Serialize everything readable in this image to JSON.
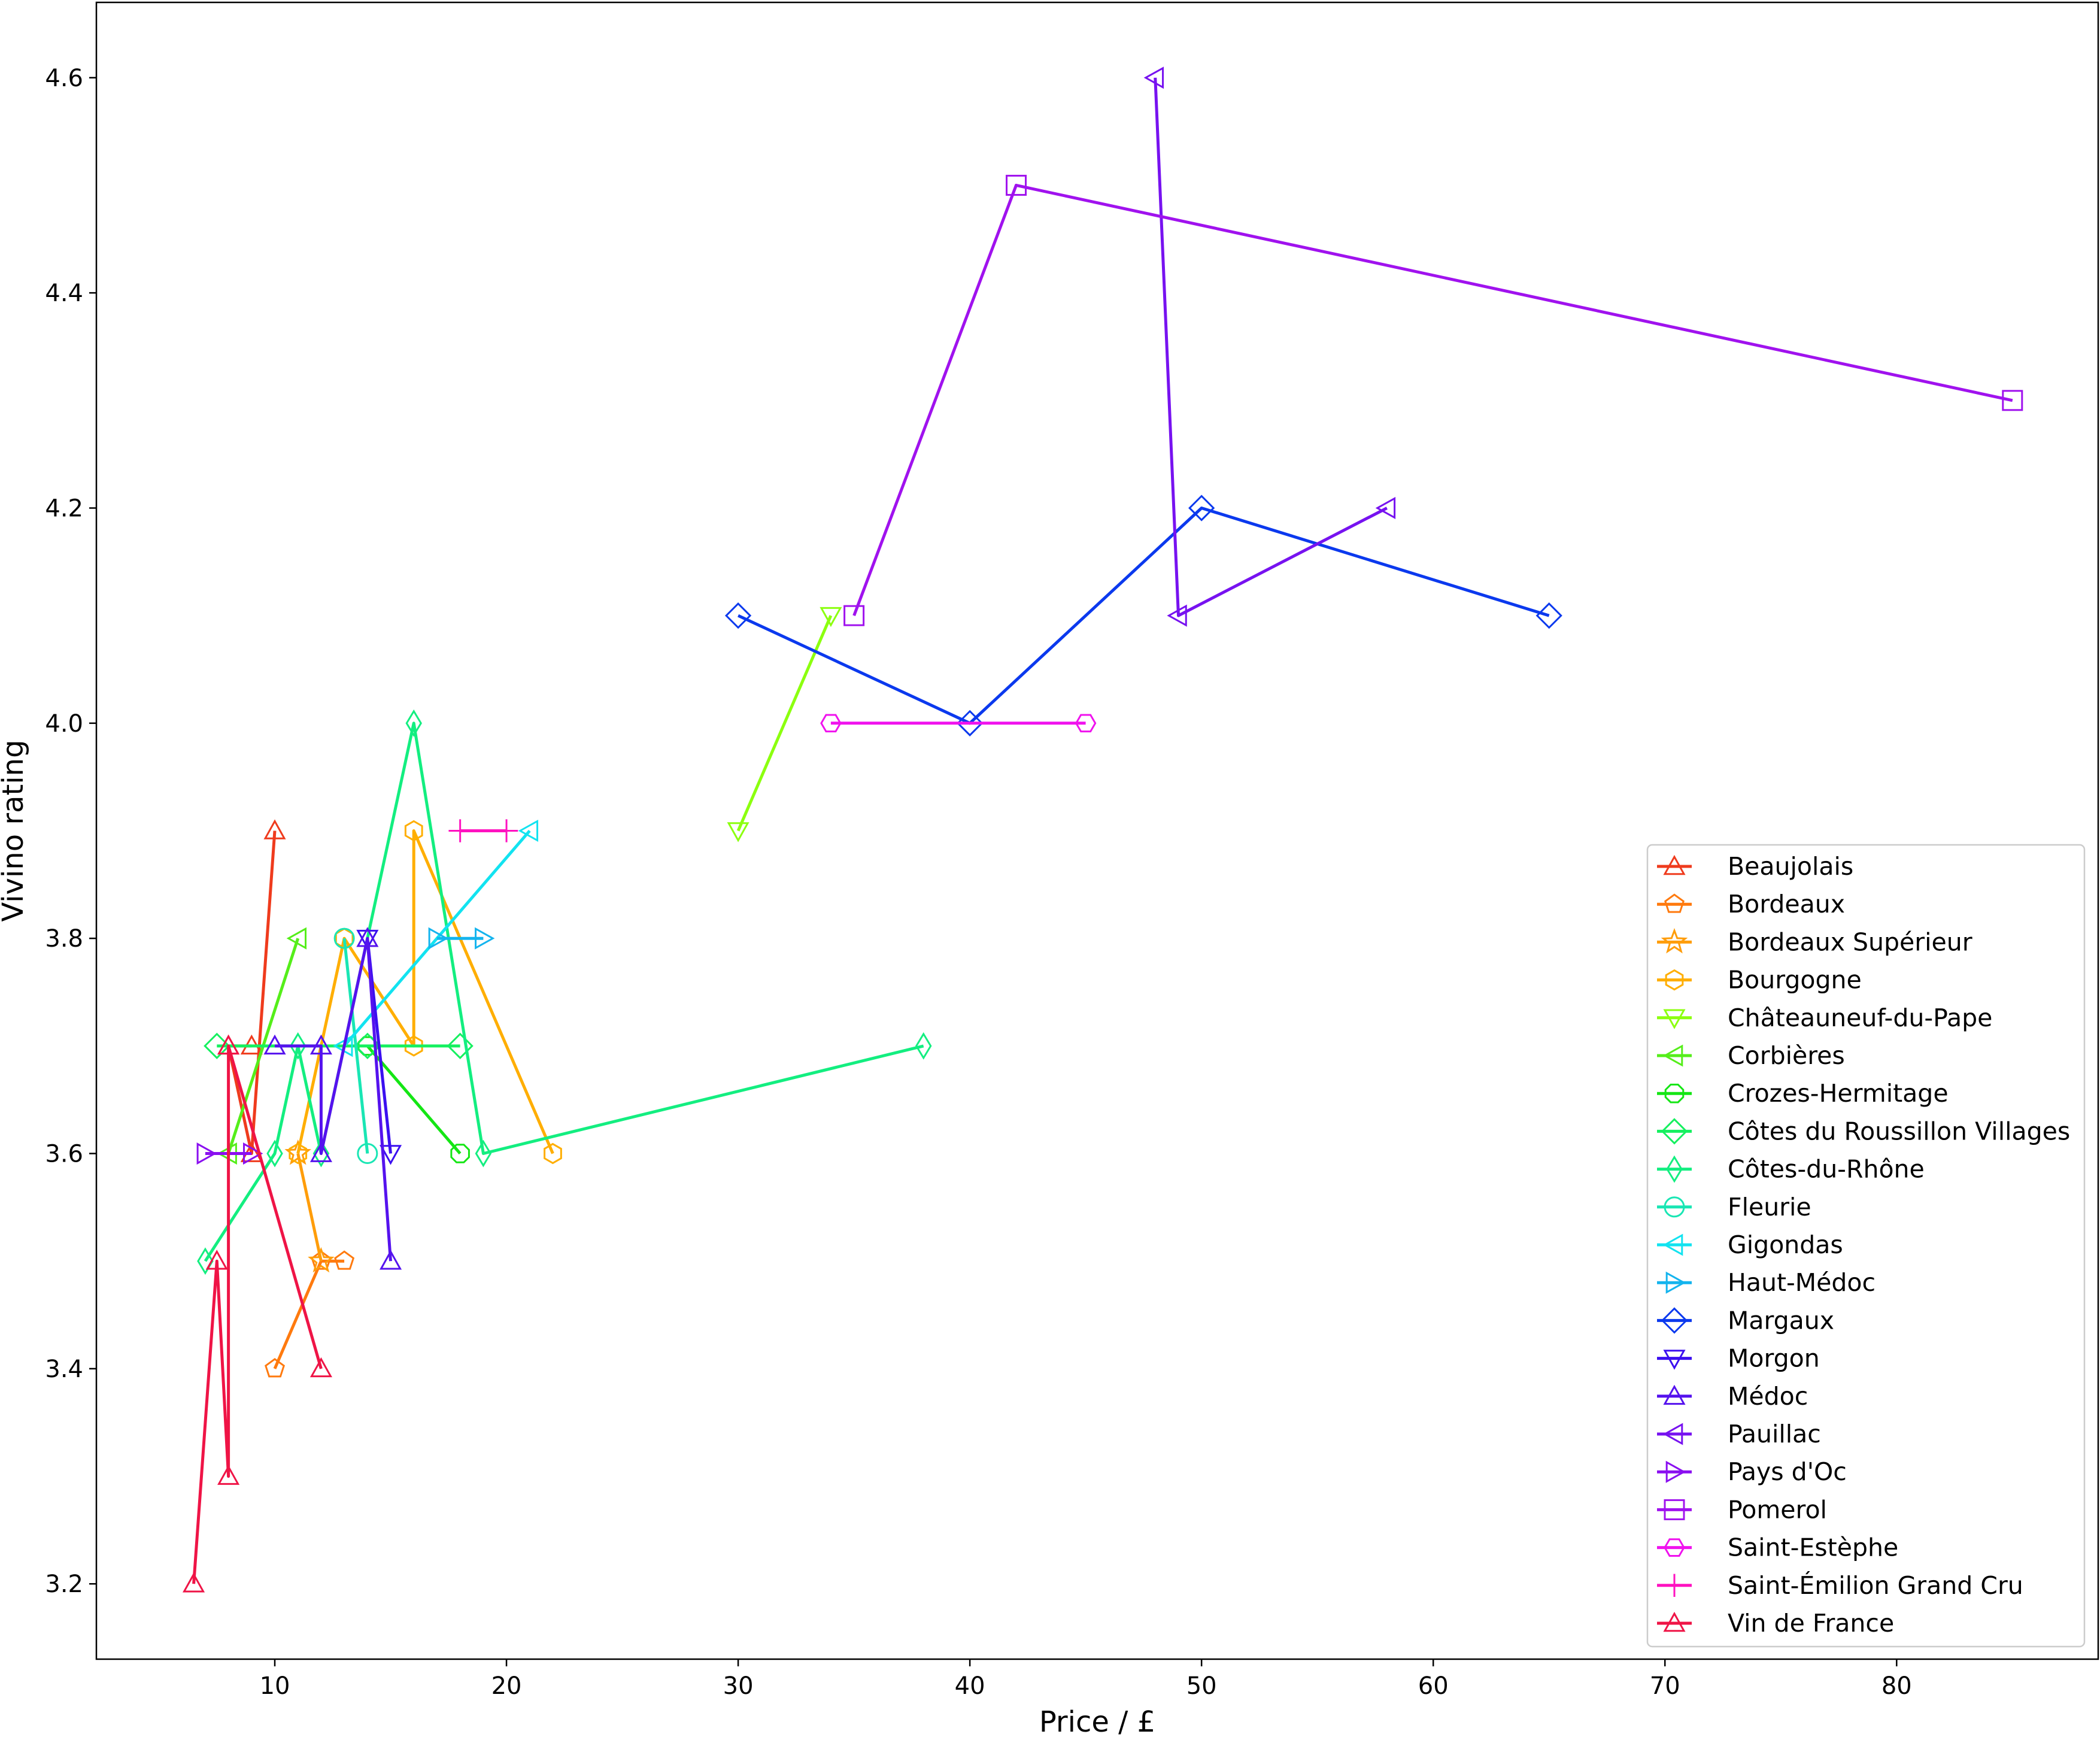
{
  "chart_data": {
    "type": "line",
    "xlabel": "Price / £",
    "ylabel": "Vivino rating",
    "xlim": [
      2.3,
      88.7
    ],
    "ylim": [
      3.13,
      4.67
    ],
    "xticks": [
      10,
      20,
      30,
      40,
      50,
      60,
      70,
      80
    ],
    "yticks": [
      3.2,
      3.4,
      3.6,
      3.8,
      4.0,
      4.2,
      4.4,
      4.6
    ],
    "xtick_labels": [
      "10",
      "20",
      "30",
      "40",
      "50",
      "60",
      "70",
      "80"
    ],
    "ytick_labels": [
      "3.2",
      "3.4",
      "3.6",
      "3.8",
      "4.0",
      "4.2",
      "4.4",
      "4.6"
    ],
    "grid": false,
    "legend_position": "lower right",
    "series": [
      {
        "name": "Beaujolais",
        "color": "#ef3b1d",
        "marker": "triangle-up",
        "points": [
          [
            10,
            3.9
          ],
          [
            9,
            3.6
          ],
          [
            8,
            3.7
          ],
          [
            9,
            3.7
          ]
        ]
      },
      {
        "name": "Bordeaux",
        "color": "#ff7a0e",
        "marker": "pentagon",
        "points": [
          [
            10,
            3.4
          ],
          [
            12,
            3.5
          ],
          [
            13,
            3.5
          ]
        ]
      },
      {
        "name": "Bordeaux Supérieur",
        "color": "#ff9d0a",
        "marker": "star",
        "points": [
          [
            11,
            3.6
          ],
          [
            12,
            3.5
          ]
        ]
      },
      {
        "name": "Bourgogne",
        "color": "#ffae00",
        "marker": "hexagon",
        "points": [
          [
            11,
            3.6
          ],
          [
            13,
            3.8
          ],
          [
            16,
            3.7
          ],
          [
            16,
            3.9
          ],
          [
            22,
            3.6
          ]
        ]
      },
      {
        "name": "Châteauneuf-du-Pape",
        "color": "#8cff0f",
        "marker": "triangle-down",
        "points": [
          [
            30,
            3.9
          ],
          [
            34,
            4.1
          ]
        ]
      },
      {
        "name": "Corbières",
        "color": "#55ee1a",
        "marker": "triangle-left",
        "points": [
          [
            8,
            3.6
          ],
          [
            11,
            3.8
          ]
        ]
      },
      {
        "name": "Crozes-Hermitage",
        "color": "#14e614",
        "marker": "octagon",
        "points": [
          [
            14,
            3.7
          ],
          [
            18,
            3.6
          ]
        ]
      },
      {
        "name": "Côtes du Roussillon Villages",
        "color": "#15f05f",
        "marker": "diamond",
        "points": [
          [
            7.5,
            3.7
          ],
          [
            14,
            3.7
          ],
          [
            18,
            3.7
          ]
        ]
      },
      {
        "name": "Côtes-du-Rhône",
        "color": "#13ee80",
        "marker": "thin-diamond",
        "points": [
          [
            7,
            3.5
          ],
          [
            10,
            3.6
          ],
          [
            11,
            3.7
          ],
          [
            12,
            3.6
          ],
          [
            16,
            4.0
          ],
          [
            19,
            3.6
          ],
          [
            38,
            3.7
          ]
        ]
      },
      {
        "name": "Fleurie",
        "color": "#19e6b4",
        "marker": "circle",
        "points": [
          [
            13,
            3.8
          ],
          [
            14,
            3.6
          ]
        ]
      },
      {
        "name": "Gigondas",
        "color": "#12e3f0",
        "marker": "triangle-left",
        "points": [
          [
            13,
            3.7
          ],
          [
            21,
            3.9
          ]
        ]
      },
      {
        "name": "Haut-Médoc",
        "color": "#14b4ee",
        "marker": "triangle-right",
        "points": [
          [
            17,
            3.8
          ],
          [
            19,
            3.8
          ]
        ]
      },
      {
        "name": "Margaux",
        "color": "#0b39ee",
        "marker": "diamond",
        "points": [
          [
            30,
            4.1
          ],
          [
            40,
            4.0
          ],
          [
            50,
            4.2
          ],
          [
            65,
            4.1
          ]
        ]
      },
      {
        "name": "Morgon",
        "color": "#3b0ff0",
        "marker": "triangle-down",
        "points": [
          [
            14,
            3.8
          ],
          [
            15,
            3.6
          ]
        ]
      },
      {
        "name": "Médoc",
        "color": "#5512ee",
        "marker": "triangle-up",
        "points": [
          [
            10,
            3.7
          ],
          [
            12,
            3.7
          ],
          [
            12,
            3.6
          ],
          [
            14,
            3.8
          ],
          [
            15,
            3.5
          ]
        ]
      },
      {
        "name": "Pauillac",
        "color": "#7712f0",
        "marker": "triangle-left",
        "points": [
          [
            48,
            4.6
          ],
          [
            49,
            4.1
          ],
          [
            58,
            4.2
          ]
        ]
      },
      {
        "name": "Pays d'Oc",
        "color": "#8a0ff0",
        "marker": "triangle-right",
        "points": [
          [
            7,
            3.6
          ],
          [
            9,
            3.6
          ]
        ]
      },
      {
        "name": "Pomerol",
        "color": "#a012ee",
        "marker": "square",
        "points": [
          [
            35,
            4.1
          ],
          [
            42,
            4.5
          ],
          [
            85,
            4.3
          ]
        ]
      },
      {
        "name": "Saint-Estèphe",
        "color": "#f012ee",
        "marker": "hexagon-flat",
        "points": [
          [
            34,
            4.0
          ],
          [
            45,
            4.0
          ]
        ]
      },
      {
        "name": "Saint-Émilion Grand Cru",
        "color": "#ff12c0",
        "marker": "plus",
        "points": [
          [
            18,
            3.9
          ],
          [
            20,
            3.9
          ]
        ]
      },
      {
        "name": "Vin de France",
        "color": "#ef1446",
        "marker": "triangle-up",
        "points": [
          [
            6.5,
            3.2
          ],
          [
            7.5,
            3.5
          ],
          [
            8,
            3.3
          ],
          [
            8,
            3.7
          ],
          [
            12,
            3.4
          ]
        ]
      }
    ]
  }
}
